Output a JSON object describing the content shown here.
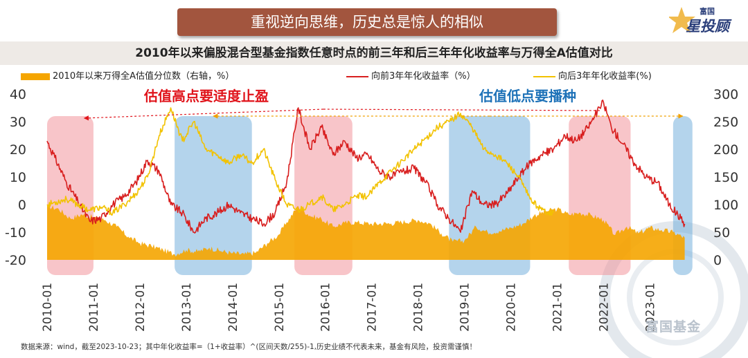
{
  "header": {
    "banner": "重视逆向思维，历史总是惊人的相似",
    "subtitle": "2010年以来偏股混合型基金指数任意时点的前三年和后三年年化收益率与万得全A估值对比"
  },
  "logo": {
    "top": "富国",
    "main": "星投顾"
  },
  "watermark": "富国基金",
  "footer": "数据来源：wind，截至2023-10-23；其中年化收益率=（1+收益率）^(区间天数/255)-1,历史业绩不代表未来，基金有风险，投资需谨慎！",
  "annotations": {
    "high": "估值高点要适度止盈",
    "low": "估值低点要播种"
  },
  "colors": {
    "valuation_area": "#f5a500",
    "past_return_line": "#d81e1e",
    "future_return_line": "#f2c200",
    "high_zone": "#f28b93",
    "low_zone": "#6aa9d9",
    "annotation_high": "#e0141b",
    "annotation_low": "#1e72b8"
  },
  "chart_data": {
    "type": "line",
    "x_ticks": [
      "2010-01",
      "2011-01",
      "2012-01",
      "2013-01",
      "2014-01",
      "2015-01",
      "2016-01",
      "2017-01",
      "2018-01",
      "2019-01",
      "2020-01",
      "2021-01",
      "2022-01",
      "2023-01"
    ],
    "left_axis": {
      "ylim": [
        -20,
        40
      ],
      "ticks": [
        40,
        30,
        20,
        10,
        0,
        -10,
        -20
      ]
    },
    "right_axis": {
      "ylim": [
        0,
        300
      ],
      "ticks": [
        300,
        250,
        200,
        150,
        100,
        50,
        0
      ]
    },
    "grid": false,
    "legend_position": "top",
    "series": [
      {
        "name": "2010年以来万得全A估值分位数（右轴，%）",
        "kind": "area",
        "axis": "right",
        "points": [
          [
            "2010-01",
            97
          ],
          [
            "2010-04",
            92
          ],
          [
            "2010-07",
            75
          ],
          [
            "2010-10",
            82
          ],
          [
            "2011-01",
            77
          ],
          [
            "2011-04",
            72
          ],
          [
            "2011-07",
            60
          ],
          [
            "2011-10",
            42
          ],
          [
            "2012-01",
            30
          ],
          [
            "2012-04",
            25
          ],
          [
            "2012-07",
            18
          ],
          [
            "2012-10",
            10
          ],
          [
            "2013-01",
            18
          ],
          [
            "2013-04",
            15
          ],
          [
            "2013-07",
            22
          ],
          [
            "2013-10",
            16
          ],
          [
            "2014-01",
            12
          ],
          [
            "2014-04",
            10
          ],
          [
            "2014-07",
            13
          ],
          [
            "2014-10",
            30
          ],
          [
            "2015-01",
            46
          ],
          [
            "2015-03",
            68
          ],
          [
            "2015-06",
            97
          ],
          [
            "2015-09",
            80
          ],
          [
            "2015-12",
            74
          ],
          [
            "2016-03",
            60
          ],
          [
            "2016-06",
            67
          ],
          [
            "2016-09",
            68
          ],
          [
            "2017-01",
            65
          ],
          [
            "2017-06",
            66
          ],
          [
            "2018-01",
            72
          ],
          [
            "2018-04",
            66
          ],
          [
            "2018-07",
            48
          ],
          [
            "2018-10",
            33
          ],
          [
            "2019-01",
            35
          ],
          [
            "2019-04",
            60
          ],
          [
            "2019-07",
            50
          ],
          [
            "2019-10",
            52
          ],
          [
            "2020-01",
            58
          ],
          [
            "2020-04",
            65
          ],
          [
            "2020-07",
            80
          ],
          [
            "2020-10",
            88
          ],
          [
            "2021-01",
            92
          ],
          [
            "2021-04",
            82
          ],
          [
            "2021-07",
            85
          ],
          [
            "2021-10",
            80
          ],
          [
            "2022-01",
            72
          ],
          [
            "2022-04",
            45
          ],
          [
            "2022-07",
            60
          ],
          [
            "2022-10",
            48
          ],
          [
            "2023-01",
            58
          ],
          [
            "2023-04",
            54
          ],
          [
            "2023-07",
            50
          ],
          [
            "2023-10",
            40
          ]
        ]
      },
      {
        "name": "向前3年年化收益率（%）",
        "kind": "line",
        "axis": "left",
        "points": [
          [
            "2010-01",
            23
          ],
          [
            "2010-03",
            17
          ],
          [
            "2010-06",
            8
          ],
          [
            "2010-09",
            1
          ],
          [
            "2010-12",
            -6
          ],
          [
            "2011-03",
            -5
          ],
          [
            "2011-06",
            0
          ],
          [
            "2011-09",
            3
          ],
          [
            "2011-12",
            8
          ],
          [
            "2012-03",
            16
          ],
          [
            "2012-06",
            12
          ],
          [
            "2012-09",
            0
          ],
          [
            "2012-12",
            -3
          ],
          [
            "2013-03",
            -10
          ],
          [
            "2013-06",
            -5
          ],
          [
            "2013-09",
            -3
          ],
          [
            "2013-12",
            0
          ],
          [
            "2014-03",
            -3
          ],
          [
            "2014-06",
            -5
          ],
          [
            "2014-09",
            -7
          ],
          [
            "2014-12",
            -3
          ],
          [
            "2015-03",
            8
          ],
          [
            "2015-06",
            35
          ],
          [
            "2015-09",
            20
          ],
          [
            "2015-12",
            28
          ],
          [
            "2016-03",
            18
          ],
          [
            "2016-06",
            23
          ],
          [
            "2016-09",
            17
          ],
          [
            "2016-12",
            18
          ],
          [
            "2017-03",
            12
          ],
          [
            "2017-06",
            10
          ],
          [
            "2017-09",
            12
          ],
          [
            "2017-12",
            13
          ],
          [
            "2018-03",
            8
          ],
          [
            "2018-06",
            0
          ],
          [
            "2018-09",
            -5
          ],
          [
            "2018-12",
            -10
          ],
          [
            "2019-03",
            5
          ],
          [
            "2019-06",
            0
          ],
          [
            "2019-09",
            0
          ],
          [
            "2019-12",
            4
          ],
          [
            "2020-03",
            10
          ],
          [
            "2020-06",
            15
          ],
          [
            "2020-09",
            18
          ],
          [
            "2020-12",
            20
          ],
          [
            "2021-03",
            25
          ],
          [
            "2021-06",
            23
          ],
          [
            "2021-09",
            28
          ],
          [
            "2021-12",
            35
          ],
          [
            "2022-01",
            37
          ],
          [
            "2022-03",
            28
          ],
          [
            "2022-06",
            22
          ],
          [
            "2022-09",
            15
          ],
          [
            "2022-12",
            10
          ],
          [
            "2023-03",
            8
          ],
          [
            "2023-06",
            0
          ],
          [
            "2023-09",
            -5
          ],
          [
            "2023-10",
            -7
          ]
        ]
      },
      {
        "name": "向后3年年化收益率(%)",
        "kind": "line",
        "axis": "left",
        "points": [
          [
            "2010-01",
            0
          ],
          [
            "2010-06",
            2
          ],
          [
            "2010-12",
            -2
          ],
          [
            "2011-03",
            -1
          ],
          [
            "2011-06",
            -3
          ],
          [
            "2011-09",
            0
          ],
          [
            "2011-12",
            4
          ],
          [
            "2012-03",
            10
          ],
          [
            "2012-06",
            25
          ],
          [
            "2012-09",
            35
          ],
          [
            "2012-12",
            23
          ],
          [
            "2013-03",
            30
          ],
          [
            "2013-06",
            20
          ],
          [
            "2013-09",
            18
          ],
          [
            "2013-12",
            15
          ],
          [
            "2014-03",
            18
          ],
          [
            "2014-06",
            15
          ],
          [
            "2014-09",
            20
          ],
          [
            "2014-12",
            9
          ],
          [
            "2015-03",
            0
          ],
          [
            "2015-06",
            -2
          ],
          [
            "2015-09",
            0
          ],
          [
            "2015-12",
            3
          ],
          [
            "2016-03",
            -2
          ],
          [
            "2016-06",
            0
          ],
          [
            "2016-09",
            3
          ],
          [
            "2016-12",
            3
          ],
          [
            "2017-03",
            8
          ],
          [
            "2017-06",
            12
          ],
          [
            "2017-09",
            16
          ],
          [
            "2017-12",
            20
          ],
          [
            "2018-03",
            24
          ],
          [
            "2018-06",
            28
          ],
          [
            "2018-09",
            30
          ],
          [
            "2018-12",
            33
          ],
          [
            "2019-03",
            28
          ],
          [
            "2019-06",
            20
          ],
          [
            "2019-09",
            18
          ],
          [
            "2019-12",
            15
          ],
          [
            "2020-03",
            10
          ],
          [
            "2020-06",
            2
          ],
          [
            "2020-09",
            -2
          ],
          [
            "2020-12",
            -3
          ]
        ]
      }
    ],
    "zones": [
      {
        "kind": "high",
        "from": "2010-01",
        "to": "2011-01"
      },
      {
        "kind": "low",
        "from": "2012-10",
        "to": "2014-06"
      },
      {
        "kind": "high",
        "from": "2015-05",
        "to": "2016-08"
      },
      {
        "kind": "low",
        "from": "2018-09",
        "to": "2020-06"
      },
      {
        "kind": "high",
        "from": "2021-04",
        "to": "2022-08"
      },
      {
        "kind": "low",
        "from": "2023-07",
        "to": "2023-12"
      }
    ]
  }
}
